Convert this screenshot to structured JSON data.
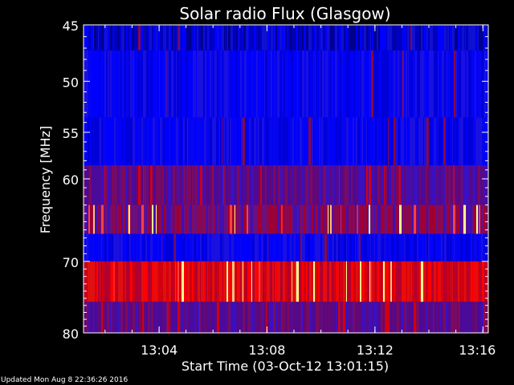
{
  "chart_data": {
    "type": "heatmap",
    "title": "Solar radio Flux (Glasgow)",
    "xlabel": "Start Time (03-Oct-12 13:01:15)",
    "ylabel": "Frequency [MHz]",
    "ylim": [
      45,
      80
    ],
    "y_inverted": true,
    "y_scale": "log",
    "y_ticks": [
      45,
      50,
      55,
      60,
      70,
      80
    ],
    "y_tick_labels": [
      "45",
      "50",
      "55",
      "60",
      "70",
      "80"
    ],
    "x_ticks": [
      "13:04",
      "13:08",
      "13:12",
      "13:16"
    ],
    "x_range_minutes": [
      13.02,
      13.27
    ],
    "x_tick_values_hours": [
      13.0667,
      13.1333,
      13.2,
      13.2667
    ],
    "colormap": [
      "#000060",
      "#0000ff",
      "#8a0040",
      "#ff0000",
      "#ffff80"
    ],
    "bands": [
      {
        "f_low": 45.0,
        "f_high": 47.2,
        "level": "dark-blue"
      },
      {
        "f_low": 47.2,
        "f_high": 53.5,
        "level": "blue"
      },
      {
        "f_low": 53.5,
        "f_high": 58.5,
        "level": "blue"
      },
      {
        "f_low": 58.5,
        "f_high": 63.0,
        "level": "purple"
      },
      {
        "f_low": 63.0,
        "f_high": 66.5,
        "level": "red-purple"
      },
      {
        "f_low": 66.5,
        "f_high": 70.0,
        "level": "blue"
      },
      {
        "f_low": 70.0,
        "f_high": 75.5,
        "level": "red"
      },
      {
        "f_low": 75.5,
        "f_high": 80.0,
        "level": "purple"
      }
    ]
  },
  "footer": "Updated Mon Aug  8 22:36:26 2016",
  "colors": {
    "background": "#000000",
    "axis": "#ffffff",
    "text": "#ffffff"
  }
}
